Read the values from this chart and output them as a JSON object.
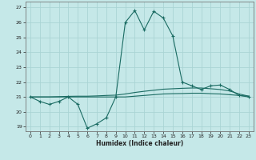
{
  "xlabel": "Humidex (Indice chaleur)",
  "xlim": [
    -0.5,
    23.5
  ],
  "ylim": [
    18.7,
    27.4
  ],
  "yticks": [
    19,
    20,
    21,
    22,
    23,
    24,
    25,
    26,
    27
  ],
  "xticks": [
    0,
    1,
    2,
    3,
    4,
    5,
    6,
    7,
    8,
    9,
    10,
    11,
    12,
    13,
    14,
    15,
    16,
    17,
    18,
    19,
    20,
    21,
    22,
    23
  ],
  "bg_color": "#c5e8e8",
  "grid_color": "#aad4d4",
  "line_color": "#1a6b62",
  "line1_x": [
    0,
    1,
    2,
    3,
    4,
    5,
    6,
    7,
    8,
    9,
    10,
    11,
    12,
    13,
    14,
    15,
    16,
    17,
    18,
    19,
    20,
    21,
    22,
    23
  ],
  "line1_y": [
    21.0,
    20.7,
    20.5,
    20.7,
    21.0,
    20.5,
    18.9,
    19.2,
    19.6,
    21.0,
    26.0,
    26.8,
    25.5,
    26.75,
    26.3,
    25.1,
    22.0,
    21.75,
    21.5,
    21.75,
    21.8,
    21.5,
    21.1,
    21.0
  ],
  "line2_x": [
    0,
    1,
    2,
    3,
    4,
    5,
    6,
    7,
    8,
    9,
    10,
    11,
    12,
    13,
    14,
    15,
    16,
    17,
    18,
    19,
    20,
    21,
    22,
    23
  ],
  "line2_y": [
    21.0,
    21.0,
    21.0,
    21.02,
    21.04,
    21.05,
    21.05,
    21.07,
    21.1,
    21.12,
    21.2,
    21.3,
    21.38,
    21.45,
    21.52,
    21.55,
    21.58,
    21.6,
    21.6,
    21.55,
    21.5,
    21.4,
    21.2,
    21.05
  ],
  "line3_x": [
    0,
    1,
    2,
    3,
    4,
    5,
    6,
    7,
    8,
    9,
    10,
    11,
    12,
    13,
    14,
    15,
    16,
    17,
    18,
    19,
    20,
    21,
    22,
    23
  ],
  "line3_y": [
    21.0,
    21.0,
    21.0,
    21.0,
    21.0,
    21.0,
    21.0,
    21.0,
    21.0,
    21.0,
    21.0,
    21.05,
    21.1,
    21.15,
    21.2,
    21.22,
    21.23,
    21.25,
    21.25,
    21.22,
    21.2,
    21.15,
    21.1,
    21.05
  ]
}
